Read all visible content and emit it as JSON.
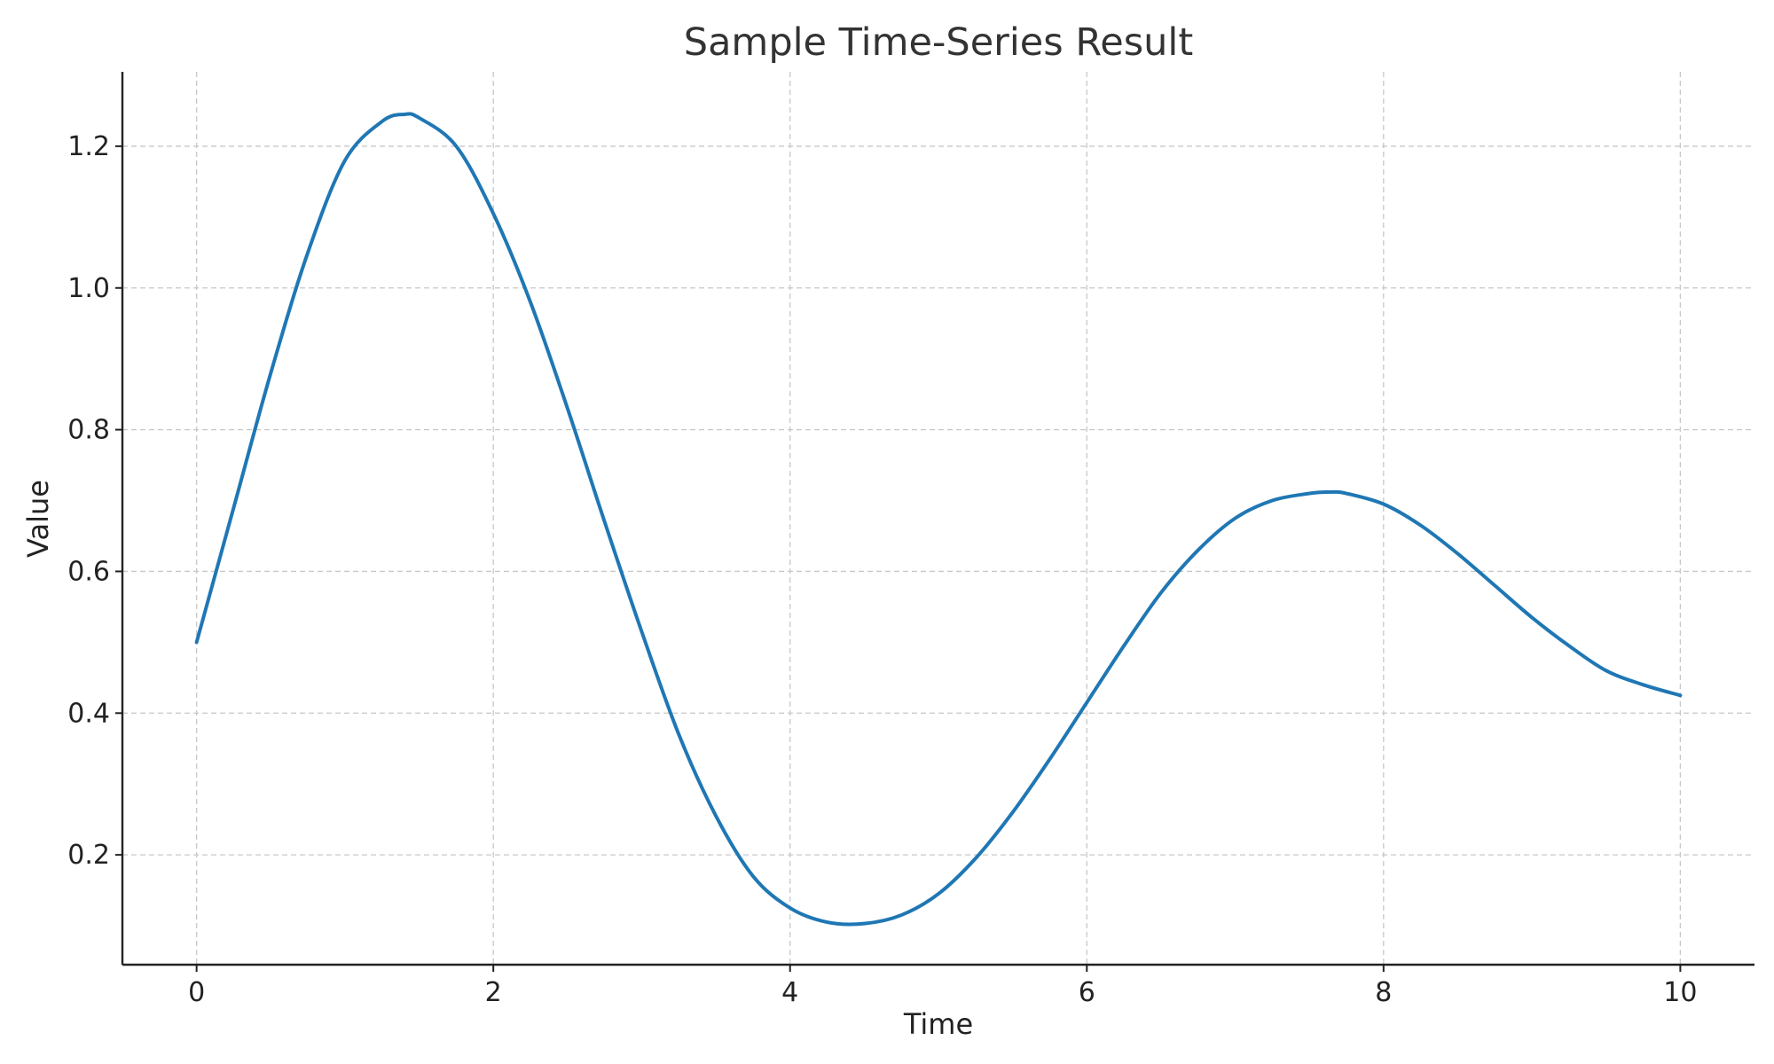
{
  "chart_data": {
    "type": "line",
    "title": "Sample Time-Series Result",
    "xlabel": "Time",
    "ylabel": "Value",
    "xlim": [
      -0.5,
      10.5
    ],
    "ylim": [
      0.045,
      1.305
    ],
    "x_ticks": [
      0,
      2,
      4,
      6,
      8,
      10
    ],
    "x_tick_labels": [
      "0",
      "2",
      "4",
      "6",
      "8",
      "10"
    ],
    "y_ticks": [
      0.2,
      0.4,
      0.6,
      0.8,
      1.0,
      1.2
    ],
    "y_tick_labels": [
      "0.2",
      "0.4",
      "0.6",
      "0.8",
      "1.0",
      "1.2"
    ],
    "grid": true,
    "legend": "none",
    "series": [
      {
        "color": "#1f77b4",
        "x": [
          0,
          0.25,
          0.5,
          0.75,
          1.0,
          1.25,
          1.4,
          1.5,
          1.75,
          2.0,
          2.25,
          2.5,
          2.75,
          3.0,
          3.25,
          3.5,
          3.75,
          4.0,
          4.25,
          4.5,
          4.75,
          5.0,
          5.25,
          5.5,
          5.75,
          6.0,
          6.25,
          6.5,
          6.75,
          7.0,
          7.25,
          7.5,
          7.65,
          7.75,
          8.0,
          8.25,
          8.5,
          8.75,
          9.0,
          9.25,
          9.5,
          9.75,
          10.0
        ],
        "y": [
          0.5,
          0.69,
          0.88,
          1.05,
          1.18,
          1.235,
          1.245,
          1.24,
          1.2,
          1.105,
          0.98,
          0.83,
          0.67,
          0.515,
          0.37,
          0.255,
          0.17,
          0.125,
          0.105,
          0.103,
          0.115,
          0.145,
          0.195,
          0.26,
          0.335,
          0.415,
          0.495,
          0.57,
          0.63,
          0.675,
          0.7,
          0.71,
          0.712,
          0.71,
          0.695,
          0.665,
          0.625,
          0.58,
          0.535,
          0.495,
          0.46,
          0.44,
          0.425
        ]
      }
    ]
  }
}
